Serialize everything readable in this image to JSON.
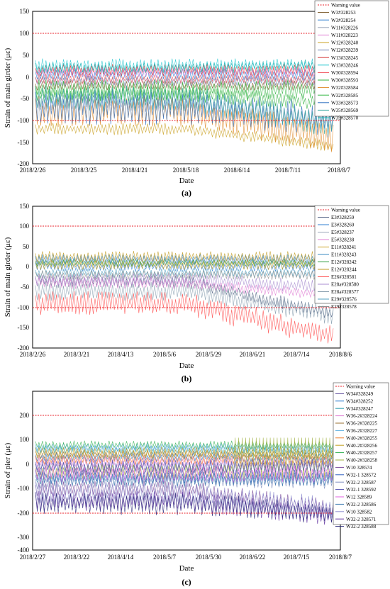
{
  "warning_color": "#e8202a",
  "panels": [
    {
      "caption": "(a)",
      "ylabel": "Strain of main girder (με)",
      "xlabel": "Date",
      "ylim": [
        -200,
        150
      ],
      "yticks": [
        -200,
        -150,
        -100,
        -50,
        0,
        50,
        100,
        150
      ],
      "xtick_labels": [
        "2018/2/26",
        "2018/3/25",
        "2018/4/21",
        "2018/5/18",
        "2018/6/14",
        "2018/7/11",
        "2018/8/7"
      ],
      "warning_levels": [
        100,
        -100
      ],
      "legend": [
        "Warning value",
        "W3#328253",
        "W3#328254",
        "W11#328226",
        "W11#328223",
        "W12#328240",
        "W12#328239",
        "W13#328245",
        "W13#328246",
        "W30#328594",
        "W30#328593",
        "W32#328584",
        "W32#328585",
        "W33#328573",
        "W35#328569",
        "W35#328570"
      ],
      "colors": [
        "#e8202a",
        "#7b5a2a",
        "#2f7fd0",
        "#9aa6b8",
        "#e07fd4",
        "#c9a020",
        "#6a7fb0",
        "#d63a3a",
        "#28c8d0",
        "#f0505a",
        "#30b040",
        "#e08a2a",
        "#38b848",
        "#3070c0",
        "#3aa8a0",
        "#20b0b0"
      ]
    },
    {
      "caption": "(b)",
      "ylabel": "Strain of main girder (με)",
      "xlabel": "Date",
      "ylim": [
        -200,
        150
      ],
      "yticks": [
        -200,
        -150,
        -100,
        -50,
        0,
        50,
        100,
        150
      ],
      "xtick_labels": [
        "2018/2/26",
        "2018/3/21",
        "2018/4/13",
        "2018/5/6",
        "2018/5/29",
        "2018/6/21",
        "2018/7/14",
        "2018/8/6"
      ],
      "warning_levels": [
        100,
        -100
      ],
      "legend": [
        "Warning value",
        "E3#328259",
        "E3#328260",
        "E5#328237",
        "E5#328238",
        "E11#328241",
        "E11#328243",
        "E12#328242",
        "E12#328244",
        "E26#328581",
        "E28a#328580",
        "E28a#328577",
        "E29#328576",
        "E29#328578"
      ],
      "colors": [
        "#e8202a",
        "#5a6a8a",
        "#2f7fd0",
        "#9aa6b8",
        "#e07fd4",
        "#c9a020",
        "#3a8ac0",
        "#2a9a3a",
        "#c09a20",
        "#ff5050",
        "#a88ed0",
        "#8aa0b0",
        "#50a0c0",
        "#909090"
      ]
    },
    {
      "caption": "(c)",
      "ylabel": "Strain of pier (με)",
      "xlabel": "Date",
      "ylim": [
        -400,
        250
      ],
      "yticks": [
        -400,
        -300,
        -200,
        -100,
        0,
        100,
        200
      ],
      "xtick_labels": [
        "2018/2/27",
        "2018/3/22",
        "2018/4/14",
        "2018/5/7",
        "2018/5/30",
        "2018/6/22",
        "2018/7/15",
        "2018/8/7"
      ],
      "warning_levels": [
        200,
        -200
      ],
      "legend": [
        "Warning value",
        "W34#328249",
        "W34#328252",
        "W34#328247",
        "W36-2#328224",
        "W36-2#328225",
        "W36-2#328227",
        "W40-2#328255",
        "W40-2#328256",
        "W40-2#328257",
        "W40-2#328258",
        "W10 328574",
        "W32-1 328572",
        "W32-2 328587",
        "W32-1 328592",
        "W12 328589",
        "W32-2 328586",
        "W10 328582",
        "W32-2 328571",
        "W32-2 328588"
      ],
      "colors": [
        "#e8202a",
        "#6a5aa0",
        "#2f7fd0",
        "#30a0b0",
        "#e07fd4",
        "#9a7030",
        "#60b0e0",
        "#f08030",
        "#c0a020",
        "#30b050",
        "#a0b040",
        "#7a4a9a",
        "#3060c0",
        "#8090c0",
        "#5050b0",
        "#e060e0",
        "#3a7ab0",
        "#9090d0",
        "#6030a0",
        "#2a2a7a"
      ]
    }
  ]
}
